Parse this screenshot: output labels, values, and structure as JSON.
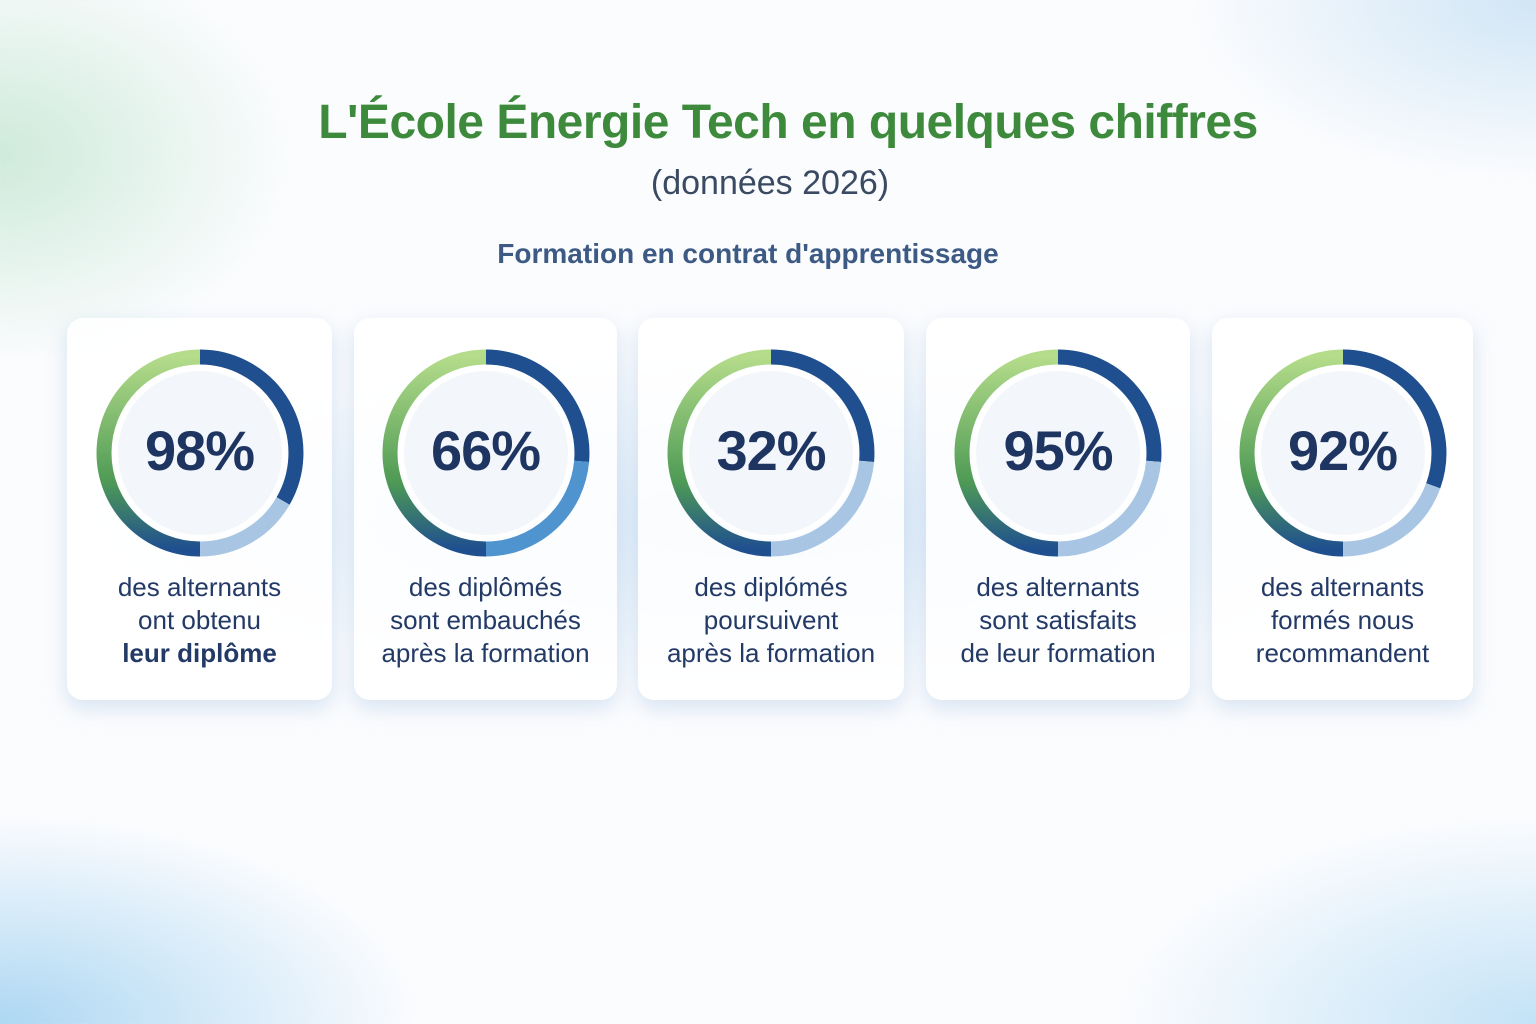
{
  "header": {
    "title": "L'École Énergie Tech en quelques chiffres",
    "subtitle": "(données 2026)",
    "section": "Formation en contrat d'apprentissage"
  },
  "colors": {
    "green_light": "#aed882",
    "green_dark": "#4e9a55",
    "blue_dark": "#1f4f8f",
    "blue_light": "#a8c6e4",
    "text": "#1d3560"
  },
  "stats": [
    {
      "value": "98%",
      "line1": "des alternants",
      "line2": "ont obtenu",
      "line3": "leur diplôme"
    },
    {
      "value": "66%",
      "line1": "des diplômés",
      "line2": "sont embauchés",
      "line3": "après la formation"
    },
    {
      "value": "32%",
      "line1": "des diplómés",
      "line2": "poursuivent",
      "line3": "après la formation"
    },
    {
      "value": "95%",
      "line1": "des alternants",
      "line2": "sont satisfaits",
      "line3": "de leur formation"
    },
    {
      "value": "92%",
      "line1": "des alternants",
      "line2": "formés nous",
      "line3": "recommandent"
    }
  ]
}
